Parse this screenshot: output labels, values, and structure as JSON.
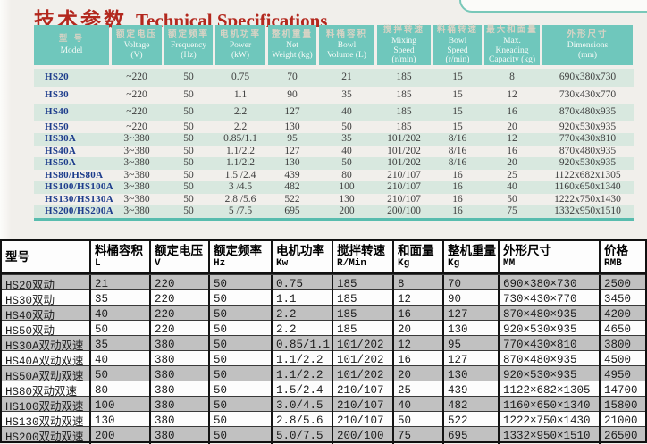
{
  "page": {
    "title_cn": "技术参数",
    "title_en": "Technical Specifications"
  },
  "colors": {
    "title_red": "#b3281e",
    "header_teal": "#6fc7bc",
    "stripe_green": "#d8e8df",
    "stripe_gray": "#c1c1c1",
    "model_blue": "#1d3c8c",
    "teal_rule": "#58bcae"
  },
  "top_table": {
    "columns": [
      {
        "cn": "型 号",
        "en": [
          "Model"
        ]
      },
      {
        "cn": "额定电压",
        "en": [
          "Voltage",
          "(V)"
        ]
      },
      {
        "cn": "额定频率",
        "en": [
          "Frequency",
          "(Hz)"
        ]
      },
      {
        "cn": "电机功率",
        "en": [
          "Power",
          "(kW)"
        ]
      },
      {
        "cn": "整机重量",
        "en": [
          "Net",
          "Weight (kg)"
        ]
      },
      {
        "cn": "料桶容积",
        "en": [
          "Bowl",
          "Volume (L)"
        ]
      },
      {
        "cn": "搅拌转速",
        "en": [
          "Mixing",
          "Speed",
          "(r/min)"
        ]
      },
      {
        "cn": "料桶转速",
        "en": [
          "Bowl",
          "Speed",
          "(r/min)"
        ]
      },
      {
        "cn": "最大和面量",
        "en": [
          "Max.",
          "Kneading",
          "Capacity (kg)"
        ]
      },
      {
        "cn": "外形尺寸",
        "en": [
          "Dimensions",
          "(mm)"
        ]
      }
    ],
    "rows": [
      [
        "HS20",
        "~220",
        "50",
        "0.75",
        "70",
        "21",
        "185",
        "15",
        "8",
        "690x380x730"
      ],
      [
        "HS30",
        "~220",
        "50",
        "1.1",
        "90",
        "35",
        "185",
        "15",
        "12",
        "730x430x770"
      ],
      [
        "HS40",
        "~220",
        "50",
        "2.2",
        "127",
        "40",
        "185",
        "15",
        "16",
        "870x480x935"
      ],
      [
        "HS50",
        "~220",
        "50",
        "2.2",
        "130",
        "50",
        "185",
        "15",
        "20",
        "920x530x935"
      ],
      [
        "HS30A",
        "3~380",
        "50",
        "0.85/1.1",
        "95",
        "35",
        "101/202",
        "8/16",
        "12",
        "770x430x810"
      ],
      [
        "HS40A",
        "3~380",
        "50",
        "1.1/2.2",
        "127",
        "40",
        "101/202",
        "8/16",
        "16",
        "870x480x935"
      ],
      [
        "HS50A",
        "3~380",
        "50",
        "1.1/2.2",
        "130",
        "50",
        "101/202",
        "8/16",
        "20",
        "920x530x935"
      ],
      [
        "HS80/HS80A",
        "3~380",
        "50",
        "1.5 /2.4",
        "439",
        "80",
        "210/107",
        "16",
        "25",
        "1122x682x1305"
      ],
      [
        "HS100/HS100A",
        "3~380",
        "50",
        "3 /4.5",
        "482",
        "100",
        "210/107",
        "16",
        "40",
        "1160x650x1340"
      ],
      [
        "HS130/HS130A",
        "3~380",
        "50",
        "2.8 /5.6",
        "522",
        "130",
        "210/107",
        "16",
        "50",
        "1222x750x1430"
      ],
      [
        "HS200/HS200A",
        "3~380",
        "50",
        "5 /7.5",
        "695",
        "200",
        "200/100",
        "16",
        "75",
        "1332x950x1510"
      ]
    ]
  },
  "bottom_table": {
    "columns": [
      {
        "cn": "型号",
        "unit": ""
      },
      {
        "cn": "料桶容积",
        "unit": "L"
      },
      {
        "cn": "额定电压",
        "unit": "V"
      },
      {
        "cn": "额定频率",
        "unit": "Hz"
      },
      {
        "cn": "电机功率",
        "unit": "Kw"
      },
      {
        "cn": "搅拌转速",
        "unit": "R/Min"
      },
      {
        "cn": "和面量",
        "unit": "Kg"
      },
      {
        "cn": "整机重量",
        "unit": "Kg"
      },
      {
        "cn": "外形尺寸",
        "unit": "MM"
      },
      {
        "cn": "价格",
        "unit": "RMB"
      }
    ],
    "rows": [
      [
        "HS20双动",
        "21",
        "220",
        "50",
        "0.75",
        "185",
        "8",
        "70",
        "690×380×730",
        "2500"
      ],
      [
        "HS30双动",
        "35",
        "220",
        "50",
        "1.1",
        "185",
        "12",
        "90",
        "730×430×770",
        "3450"
      ],
      [
        "HS40双动",
        "40",
        "220",
        "50",
        "2.2",
        "185",
        "16",
        "127",
        "870×480×935",
        "4200"
      ],
      [
        "HS50双动",
        "50",
        "220",
        "50",
        "2.2",
        "185",
        "20",
        "130",
        "920×530×935",
        "4650"
      ],
      [
        "HS30A双动双速",
        "35",
        "380",
        "50",
        "0.85/1.1",
        "101/202",
        "12",
        "95",
        "770×430×810",
        "3800"
      ],
      [
        "HS40A双动双速",
        "40",
        "380",
        "50",
        "1.1/2.2",
        "101/202",
        "16",
        "127",
        "870×480×935",
        "4500"
      ],
      [
        "HS50A双动双速",
        "50",
        "380",
        "50",
        "1.1/2.2",
        "101/202",
        "20",
        "130",
        "920×530×935",
        "4950"
      ],
      [
        "HS80双动双速",
        "80",
        "380",
        "50",
        "1.5/2.4",
        "210/107",
        "25",
        "439",
        "1122×682×1305",
        "14700"
      ],
      [
        "HS100双动双速",
        "100",
        "380",
        "50",
        "3.0/4.5",
        "210/107",
        "40",
        "482",
        "1160×650×1340",
        "15800"
      ],
      [
        "HS130双动双速",
        "130",
        "380",
        "50",
        "2.8/5.6",
        "210/107",
        "50",
        "522",
        "1222×750×1430",
        "21000"
      ],
      [
        "HS200双动双速",
        "200",
        "380",
        "50",
        "5.0/7.5",
        "200/100",
        "75",
        "695",
        "1332×950×1510",
        "26500"
      ]
    ]
  }
}
